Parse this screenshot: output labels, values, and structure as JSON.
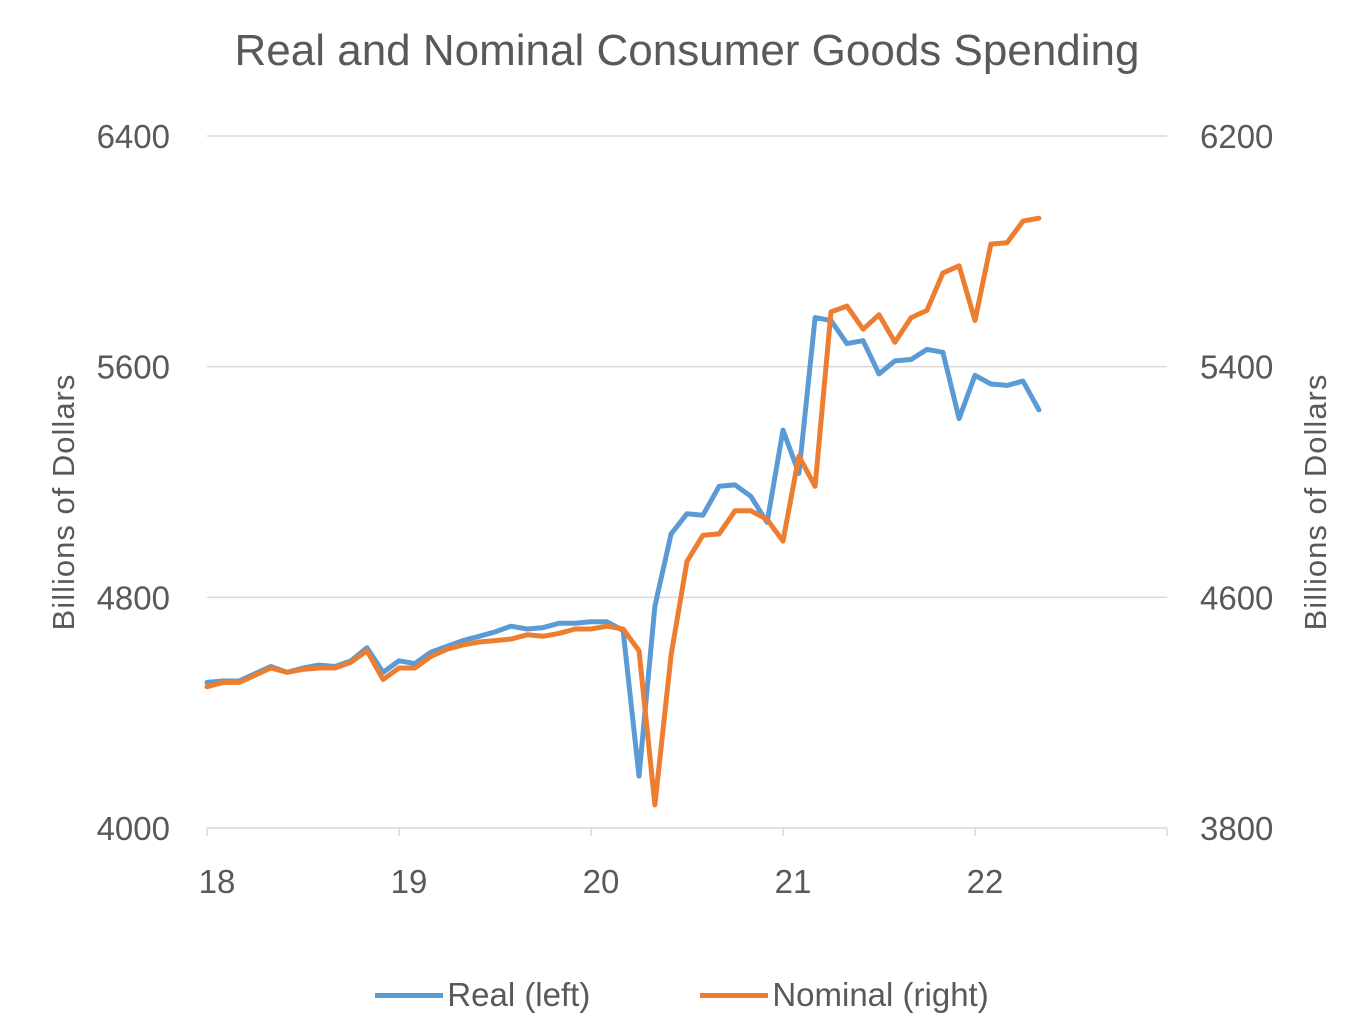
{
  "chart_data": {
    "type": "line",
    "title": "Real and Nominal Consumer  Goods Spending",
    "ylabel_left": "Billions of Dollars",
    "ylabel_right": "Billions of Dollars",
    "ylim_left": [
      4000,
      6400
    ],
    "ylim_right": [
      3800,
      6200
    ],
    "yticks_left": [
      "6400",
      "5600",
      "4800",
      "4000"
    ],
    "yticks_right": [
      "6200",
      "5400",
      "4600",
      "3800"
    ],
    "xticks": [
      "18",
      "19",
      "20",
      "21",
      "22"
    ],
    "xlim": [
      18,
      23
    ],
    "grid": true,
    "legend_position": "bottom",
    "x": [
      18.0,
      18.083,
      18.167,
      18.25,
      18.333,
      18.417,
      18.5,
      18.583,
      18.667,
      18.75,
      18.833,
      18.917,
      19.0,
      19.083,
      19.167,
      19.25,
      19.333,
      19.417,
      19.5,
      19.583,
      19.667,
      19.75,
      19.833,
      19.917,
      20.0,
      20.083,
      20.167,
      20.25,
      20.333,
      20.417,
      20.5,
      20.583,
      20.667,
      20.75,
      20.833,
      20.917,
      21.0,
      21.083,
      21.167,
      21.25,
      21.333,
      21.417,
      21.5,
      21.583,
      21.667,
      21.75,
      21.833,
      21.917,
      22.0,
      22.083,
      22.167,
      22.25,
      22.333
    ],
    "series": [
      {
        "name": "Real (left)",
        "axis": "left",
        "color": "#5B9BD5",
        "values": [
          4505,
          4510,
          4510,
          4535,
          4560,
          4540,
          4555,
          4565,
          4560,
          4580,
          4625,
          4540,
          4580,
          4570,
          4610,
          4630,
          4650,
          4665,
          4680,
          4700,
          4690,
          4695,
          4710,
          4710,
          4715,
          4715,
          4685,
          4180,
          4770,
          5020,
          5090,
          5085,
          5185,
          5190,
          5150,
          5060,
          5380,
          5230,
          5770,
          5760,
          5680,
          5690,
          5575,
          5620,
          5625,
          5660,
          5650,
          5420,
          5570,
          5540,
          5535,
          5550,
          5450
        ]
      },
      {
        "name": "Nominal (right)",
        "axis": "right",
        "color": "#ED7D31",
        "values": [
          4290,
          4305,
          4305,
          4330,
          4355,
          4340,
          4350,
          4355,
          4355,
          4375,
          4415,
          4315,
          4355,
          4355,
          4395,
          4420,
          4435,
          4445,
          4450,
          4455,
          4470,
          4465,
          4475,
          4490,
          4490,
          4500,
          4490,
          4415,
          3880,
          4400,
          4725,
          4815,
          4820,
          4900,
          4900,
          4870,
          4795,
          5090,
          4985,
          5590,
          5610,
          5530,
          5580,
          5485,
          5570,
          5595,
          5725,
          5750,
          5560,
          5825,
          5830,
          5905,
          5915
        ]
      }
    ]
  }
}
